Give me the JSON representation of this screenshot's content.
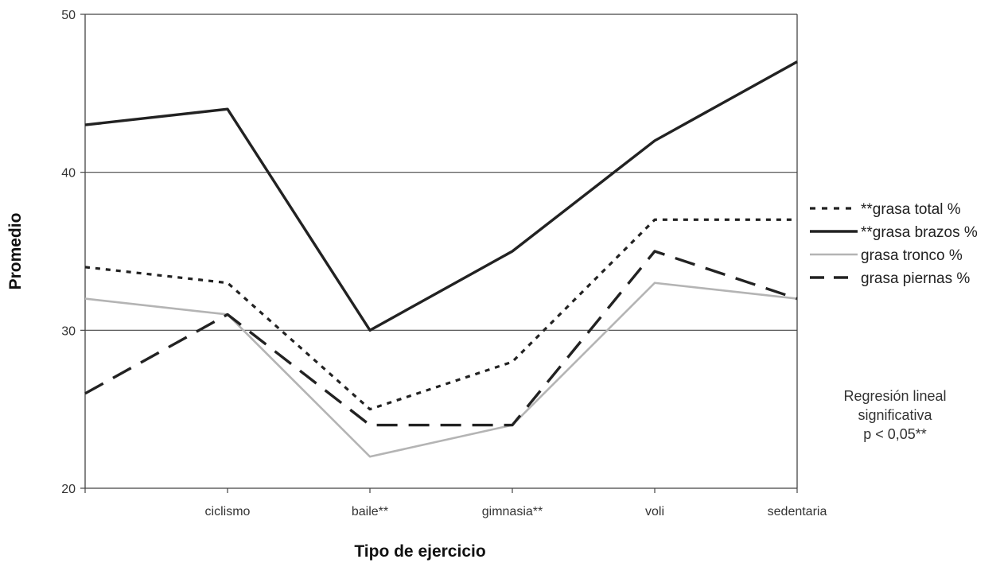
{
  "chart_data": {
    "type": "line",
    "title": "",
    "xlabel": "Tipo de ejercicio",
    "ylabel": "Promedio",
    "categories": [
      "",
      "ciclismo",
      "baile**",
      "gimnasia**",
      "voli",
      "sedentaria"
    ],
    "ylim": [
      20,
      50
    ],
    "yticks": [
      20,
      30,
      40,
      50
    ],
    "grid": "horizontal",
    "legend_position": "right",
    "series": [
      {
        "name": "**grasa total %",
        "values": [
          34,
          33,
          25,
          28,
          37,
          37
        ],
        "color": "#222222",
        "style": "dotted"
      },
      {
        "name": "**grasa brazos %",
        "values": [
          43,
          44,
          30,
          35,
          42,
          47
        ],
        "color": "#222222",
        "style": "solid"
      },
      {
        "name": "grasa tronco %",
        "values": [
          32,
          31,
          22,
          24,
          33,
          32
        ],
        "color": "#b4b4b4",
        "style": "solid"
      },
      {
        "name": "grasa piernas %",
        "values": [
          26,
          31,
          24,
          24,
          35,
          32
        ],
        "color": "#222222",
        "style": "dashed"
      }
    ]
  },
  "annotation": {
    "line1": "Regresión lineal",
    "line2": "significativa",
    "line3": "p < 0,05**"
  }
}
